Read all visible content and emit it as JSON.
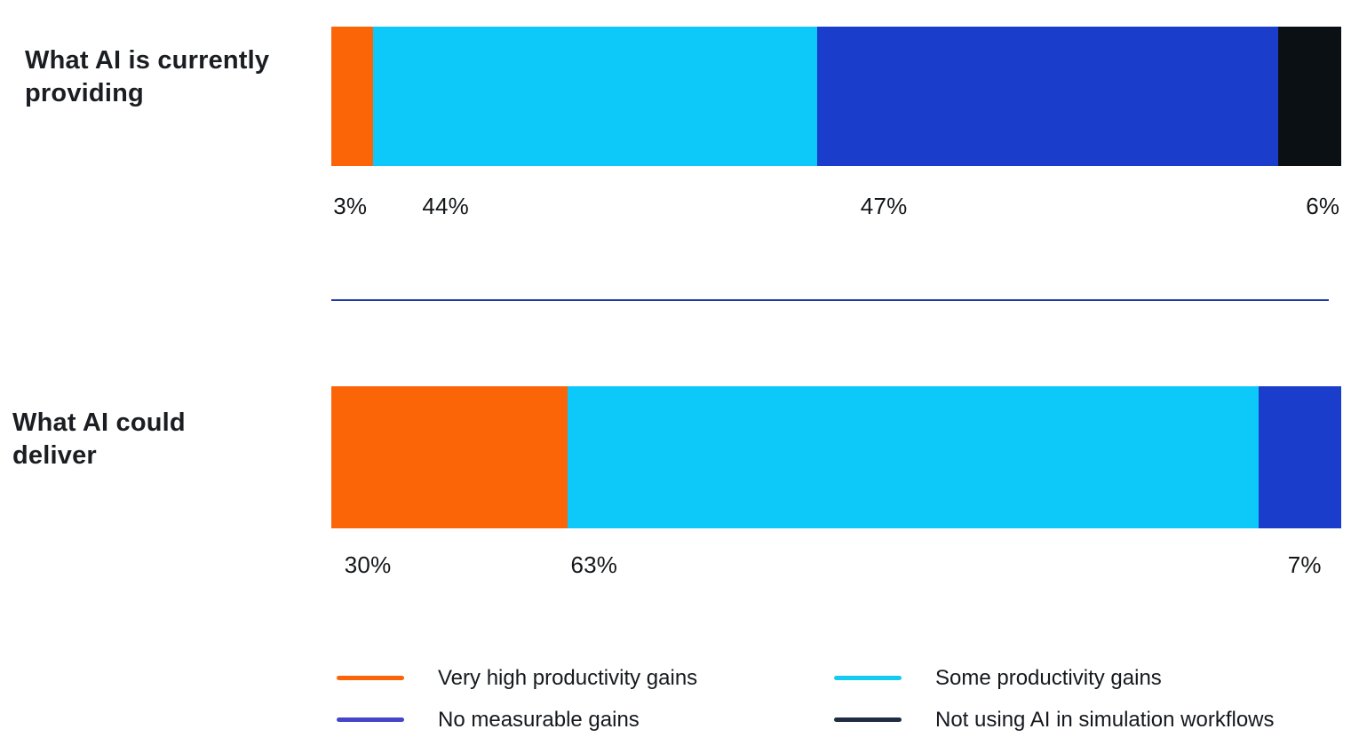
{
  "page": {
    "background": "#ffffff"
  },
  "chart_data": {
    "type": "bar",
    "variant": "horizontal-stacked-percent",
    "unit": "%",
    "xlim": [
      0,
      100
    ],
    "grid": false,
    "legend_position": "bottom",
    "divider_color": "#1E3AA4",
    "title_color": "#1A1D21",
    "label_color": "#131619",
    "legend_text_color": "#15191E",
    "categories": [
      "Very high productivity gains",
      "Some productivity gains",
      "No measurable gains",
      "Not using AI in simulation workflows"
    ],
    "rows": [
      {
        "label": "What AI is currently providing",
        "label_lines": [
          "What AI is currently",
          "providing"
        ],
        "segments": [
          {
            "name": "Very high productivity gains",
            "value": 3,
            "display_label": "3%",
            "color": "#FB6508",
            "render_width_pct": 4.1,
            "label_left_pct": 0.2
          },
          {
            "name": "Some productivity gains",
            "value": 44,
            "display_label": "44%",
            "color": "#0DC9FA",
            "render_width_pct": 44.0,
            "label_left_pct": 9.0
          },
          {
            "name": "No measurable gains",
            "value": 47,
            "display_label": "47%",
            "color": "#1A3DCB",
            "render_width_pct": 45.7,
            "label_left_pct": 52.4
          },
          {
            "name": "Not using AI in simulation workflows",
            "value": 6,
            "display_label": "6%",
            "color": "#0B1014",
            "render_width_pct": 6.2,
            "label_left_pct": 96.5
          }
        ]
      },
      {
        "label": "What AI could deliver",
        "label_lines": [
          "What AI could",
          "deliver"
        ],
        "segments": [
          {
            "name": "Very high productivity gains",
            "value": 30,
            "display_label": "30%",
            "color": "#FB6508",
            "render_width_pct": 23.4,
            "label_left_pct": 1.3
          },
          {
            "name": "Some productivity gains",
            "value": 63,
            "display_label": "63%",
            "color": "#0DC9FA",
            "render_width_pct": 68.4,
            "label_left_pct": 23.7
          },
          {
            "name": "No measurable gains",
            "value": 7,
            "display_label": "7%",
            "color": "#1A3DCB",
            "render_width_pct": 8.2,
            "label_left_pct": 94.7
          }
        ]
      }
    ],
    "legend": [
      {
        "label": "Very high productivity gains",
        "color": "#FB6508"
      },
      {
        "label": "Some productivity gains",
        "color": "#15CBF2"
      },
      {
        "label": "No measurable gains",
        "color": "#4645C9"
      },
      {
        "label": "Not using AI in simulation workflows",
        "color": "#202C44"
      }
    ]
  }
}
